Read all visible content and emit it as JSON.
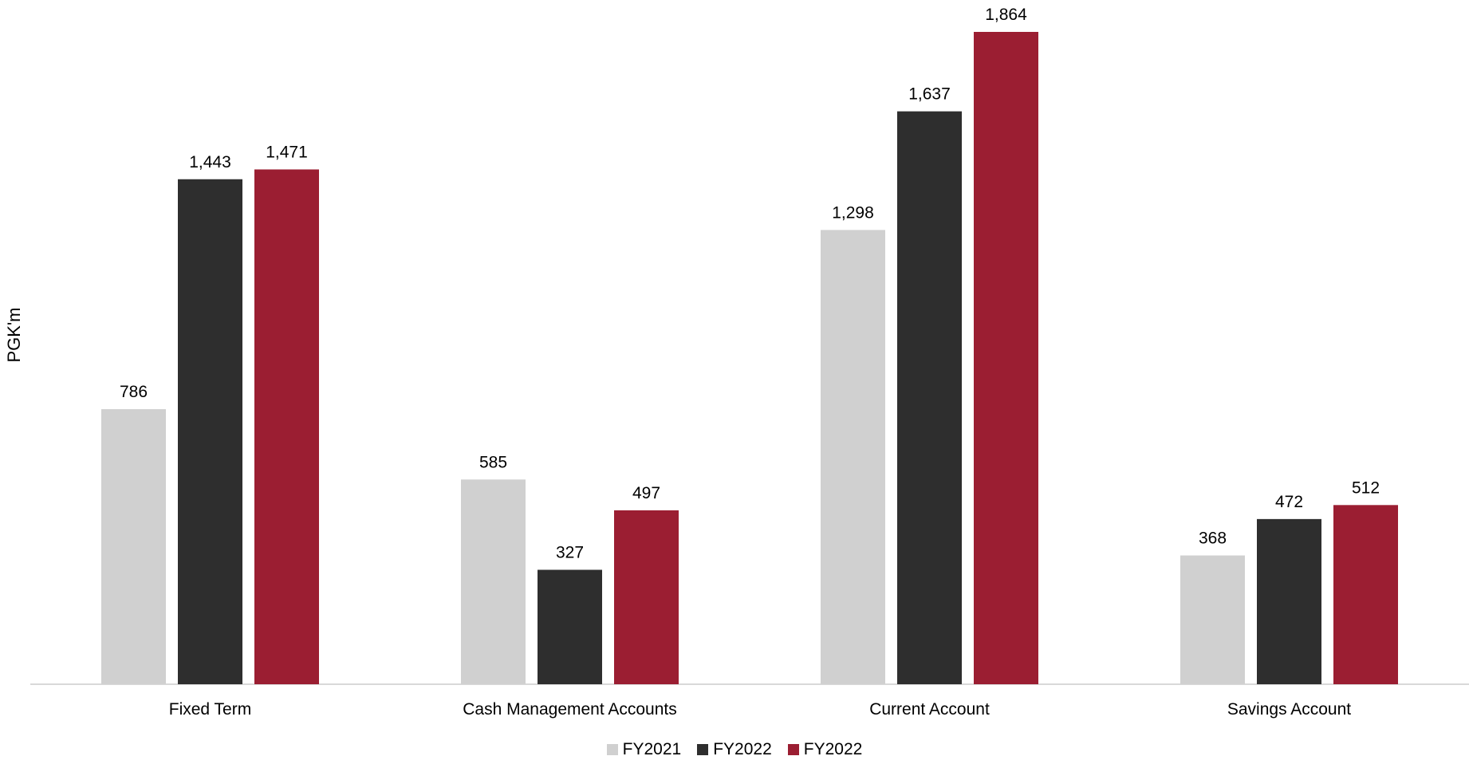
{
  "chart_data": {
    "type": "bar",
    "ylabel": "PGK'm",
    "xlabel": "",
    "categories": [
      "Fixed Term",
      "Cash Management Accounts",
      "Current Account",
      "Savings Account"
    ],
    "series": [
      {
        "name": "FY2021",
        "color": "#d0d0d0",
        "values": [
          786,
          585,
          1298,
          368
        ],
        "labels": [
          "786",
          "585",
          "1,298",
          "368"
        ]
      },
      {
        "name": "FY2022",
        "color": "#2e2e2e",
        "values": [
          1443,
          327,
          1637,
          472
        ],
        "labels": [
          "1,443",
          "327",
          "1,637",
          "472"
        ]
      },
      {
        "name": "FY2022",
        "color": "#9b1e32",
        "values": [
          1471,
          497,
          1864,
          512
        ],
        "labels": [
          "1,471",
          "497",
          "1,864",
          "512"
        ]
      }
    ],
    "ylim": [
      0,
      1864
    ],
    "grid": false,
    "legend_position": "bottom-center"
  }
}
